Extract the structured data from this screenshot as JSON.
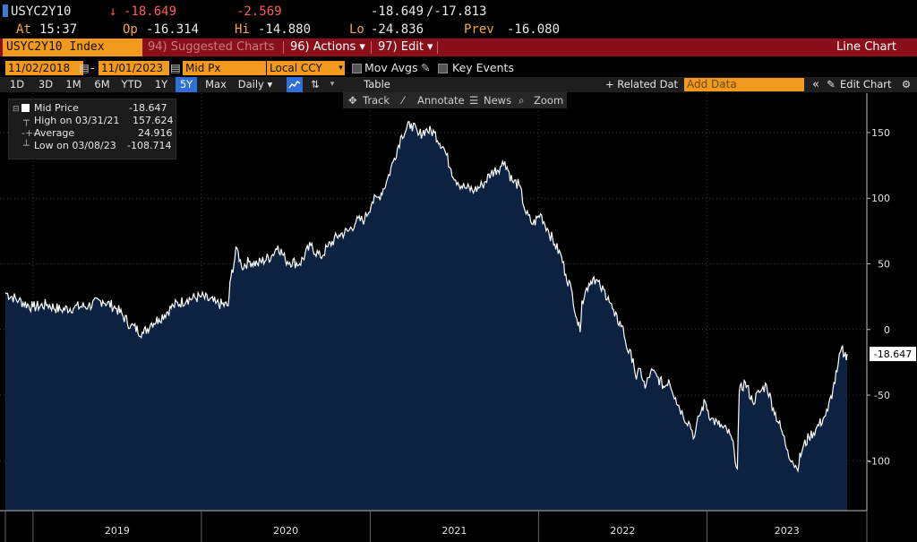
{
  "quote": {
    "ticker": "USYC2Y10",
    "arrow": "↓",
    "last": "-18.649",
    "change": "-2.569",
    "bid": "-18.649",
    "ask": "/-17.813",
    "at_label": "At",
    "time": "15:37",
    "open_label": "Op",
    "open": "-16.314",
    "high_label": "Hi",
    "high": "-14.880",
    "low_label": "Lo",
    "low": "-24.836",
    "prev_label": "Prev",
    "prev": "-16.080"
  },
  "menu": {
    "security": "USYC2Y10 Index",
    "suggested": "94) Suggested Charts",
    "actions": "96) Actions ▾",
    "edit": "97) Edit ▾",
    "chart_type": "Line Chart"
  },
  "options": {
    "start_date": "11/02/2018",
    "dash": "-",
    "end_date": "11/01/2023",
    "field": "Mid Px",
    "currency": "Local CCY",
    "mov_avgs": "Mov Avgs",
    "key_events": "Key Events"
  },
  "range": {
    "buttons": [
      "1D",
      "3D",
      "1M",
      "6M",
      "YTD",
      "1Y",
      "5Y",
      "Max"
    ],
    "active": "5Y",
    "frequency": "Daily ▾",
    "table": "Table",
    "related": "+ Related Dat",
    "add_data_placeholder": "Add Data",
    "collapse": "«",
    "edit_chart": "Edit Chart",
    "gear": "⚙"
  },
  "annotate": {
    "track": "Track",
    "annotate": "Annotate",
    "news": "News",
    "zoom": "Zoom"
  },
  "legend": {
    "series": "Mid Price",
    "series_value": "-18.647",
    "high_label": "High on 03/31/21",
    "high_value": "157.624",
    "avg_label": "Average",
    "avg_value": "24.916",
    "low_label": "Low on 03/08/23",
    "low_value": "-108.714"
  },
  "colors": {
    "amber": "#f4a93a",
    "down_red": "#ff5a5a",
    "menu_red": "#8b0f1a",
    "fill": "#0c2240",
    "line": "#ffffff",
    "active_blue": "#2f6fd6"
  },
  "chart_data": {
    "type": "area",
    "title": "",
    "xlabel": "",
    "ylabel": "",
    "x_ticks": [
      "2019",
      "2020",
      "2021",
      "2022",
      "2023"
    ],
    "y_ticks": [
      150,
      100,
      50,
      0,
      -50,
      -100
    ],
    "ylim": [
      -138,
      180
    ],
    "xlim": [
      "2018-11-02",
      "2023-11-01"
    ],
    "last_value_label": "-18.647",
    "grid": true,
    "series": [
      {
        "name": "Mid Price",
        "points": [
          [
            "2018-11-02",
            28
          ],
          [
            "2018-12-01",
            22
          ],
          [
            "2019-01-01",
            17
          ],
          [
            "2019-02-01",
            19
          ],
          [
            "2019-03-01",
            15
          ],
          [
            "2019-04-01",
            17
          ],
          [
            "2019-05-01",
            18
          ],
          [
            "2019-06-01",
            22
          ],
          [
            "2019-07-01",
            16
          ],
          [
            "2019-08-01",
            3
          ],
          [
            "2019-08-28",
            -3
          ],
          [
            "2019-09-15",
            5
          ],
          [
            "2019-10-01",
            8
          ],
          [
            "2019-11-01",
            18
          ],
          [
            "2019-12-01",
            23
          ],
          [
            "2020-01-01",
            25
          ],
          [
            "2020-02-01",
            20
          ],
          [
            "2020-02-28",
            18
          ],
          [
            "2020-03-05",
            40
          ],
          [
            "2020-03-18",
            62
          ],
          [
            "2020-03-28",
            48
          ],
          [
            "2020-04-15",
            52
          ],
          [
            "2020-05-01",
            50
          ],
          [
            "2020-06-01",
            56
          ],
          [
            "2020-06-15",
            64
          ],
          [
            "2020-07-01",
            53
          ],
          [
            "2020-08-01",
            50
          ],
          [
            "2020-08-25",
            64
          ],
          [
            "2020-09-15",
            55
          ],
          [
            "2020-10-01",
            63
          ],
          [
            "2020-10-25",
            72
          ],
          [
            "2020-11-15",
            75
          ],
          [
            "2020-12-01",
            82
          ],
          [
            "2020-12-20",
            84
          ],
          [
            "2021-01-05",
            97
          ],
          [
            "2021-01-20",
            101
          ],
          [
            "2021-02-05",
            112
          ],
          [
            "2021-02-20",
            128
          ],
          [
            "2021-03-10",
            148
          ],
          [
            "2021-03-31",
            157
          ],
          [
            "2021-04-15",
            148
          ],
          [
            "2021-05-01",
            152
          ],
          [
            "2021-05-20",
            150
          ],
          [
            "2021-06-10",
            138
          ],
          [
            "2021-06-25",
            122
          ],
          [
            "2021-07-10",
            112
          ],
          [
            "2021-07-25",
            108
          ],
          [
            "2021-08-15",
            106
          ],
          [
            "2021-09-01",
            110
          ],
          [
            "2021-09-20",
            119
          ],
          [
            "2021-10-10",
            124
          ],
          [
            "2021-10-20",
            128
          ],
          [
            "2021-11-05",
            113
          ],
          [
            "2021-11-20",
            110
          ],
          [
            "2021-12-05",
            88
          ],
          [
            "2021-12-20",
            80
          ],
          [
            "2022-01-05",
            88
          ],
          [
            "2022-01-20",
            77
          ],
          [
            "2022-02-05",
            65
          ],
          [
            "2022-02-20",
            55
          ],
          [
            "2022-03-01",
            42
          ],
          [
            "2022-03-15",
            28
          ],
          [
            "2022-03-25",
            8
          ],
          [
            "2022-04-01",
            -2
          ],
          [
            "2022-04-05",
            22
          ],
          [
            "2022-04-20",
            35
          ],
          [
            "2022-05-01",
            40
          ],
          [
            "2022-05-15",
            32
          ],
          [
            "2022-06-01",
            25
          ],
          [
            "2022-06-15",
            10
          ],
          [
            "2022-07-01",
            3
          ],
          [
            "2022-07-15",
            -18
          ],
          [
            "2022-07-25",
            -22
          ],
          [
            "2022-08-01",
            -38
          ],
          [
            "2022-08-10",
            -30
          ],
          [
            "2022-08-20",
            -45
          ],
          [
            "2022-09-01",
            -32
          ],
          [
            "2022-09-15",
            -36
          ],
          [
            "2022-10-01",
            -44
          ],
          [
            "2022-10-10",
            -38
          ],
          [
            "2022-10-25",
            -52
          ],
          [
            "2022-11-10",
            -65
          ],
          [
            "2022-11-25",
            -72
          ],
          [
            "2022-12-05",
            -82
          ],
          [
            "2022-12-15",
            -66
          ],
          [
            "2022-12-28",
            -55
          ],
          [
            "2023-01-10",
            -68
          ],
          [
            "2023-01-25",
            -72
          ],
          [
            "2023-02-05",
            -75
          ],
          [
            "2023-02-20",
            -80
          ],
          [
            "2023-03-01",
            -92
          ],
          [
            "2023-03-08",
            -106
          ],
          [
            "2023-03-12",
            -48
          ],
          [
            "2023-03-25",
            -40
          ],
          [
            "2023-04-10",
            -55
          ],
          [
            "2023-04-25",
            -48
          ],
          [
            "2023-05-10",
            -42
          ],
          [
            "2023-05-25",
            -60
          ],
          [
            "2023-06-10",
            -75
          ],
          [
            "2023-06-25",
            -92
          ],
          [
            "2023-07-05",
            -100
          ],
          [
            "2023-07-15",
            -106
          ],
          [
            "2023-07-28",
            -90
          ],
          [
            "2023-08-10",
            -82
          ],
          [
            "2023-08-25",
            -76
          ],
          [
            "2023-09-10",
            -68
          ],
          [
            "2023-09-20",
            -62
          ],
          [
            "2023-10-01",
            -46
          ],
          [
            "2023-10-10",
            -32
          ],
          [
            "2023-10-20",
            -14
          ],
          [
            "2023-10-26",
            -20
          ],
          [
            "2023-11-01",
            -18.647
          ]
        ]
      }
    ]
  }
}
